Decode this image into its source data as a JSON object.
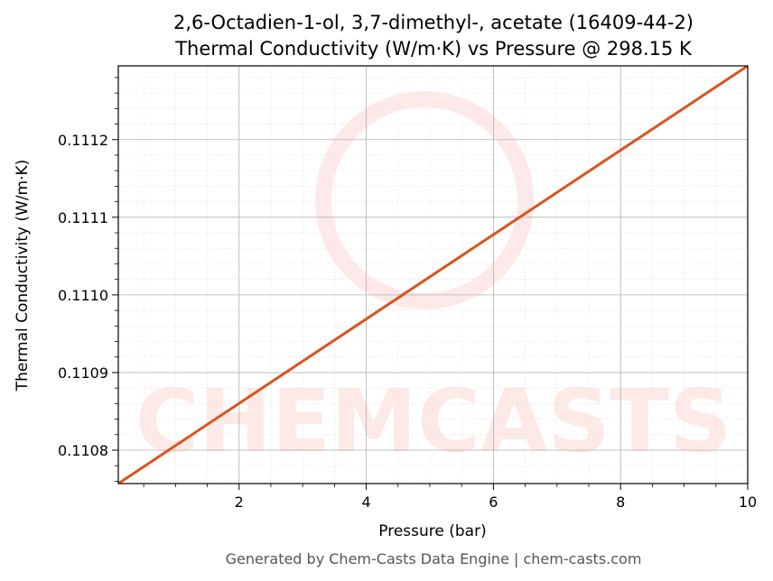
{
  "chart_data": {
    "type": "line",
    "title": "2,6-Octadien-1-ol, 3,7-dimethyl-, acetate (16409-44-2)",
    "subtitle": "Thermal Conductivity (W/m·K) vs Pressure @ 298.15 K",
    "xlabel": "Pressure (bar)",
    "ylabel": "Thermal Conductivity (W/m·K)",
    "footer": "Generated by Chem-Casts Data Engine | chem-casts.com",
    "watermark": "CHEMCASTS",
    "x": [
      0.1,
      10
    ],
    "series": [
      {
        "name": "Thermal Conductivity",
        "color": "#d9541e",
        "values": [
          0.110757,
          0.111295
        ]
      }
    ],
    "xlim": [
      0.1,
      10
    ],
    "ylim": [
      0.110757,
      0.111295
    ],
    "xticks": [
      2,
      4,
      6,
      8,
      10
    ],
    "yticks": [
      0.1108,
      0.1109,
      {
        "value": 0.111,
        "label": "0.1110"
      },
      0.1111,
      0.1112
    ],
    "xminorticks": [
      0.5,
      1,
      1.5,
      2.5,
      3,
      3.5,
      4.5,
      5,
      5.5,
      6.5,
      7,
      7.5,
      8.5,
      9,
      9.5
    ],
    "yminorticks": [
      0.11076,
      0.11078,
      0.11082,
      0.11084,
      0.11086,
      0.11088,
      0.11092,
      0.11094,
      0.11096,
      0.11098,
      0.11102,
      0.11104,
      0.11106,
      0.11108,
      0.11112,
      0.11114,
      0.11116,
      0.11118,
      0.11122,
      0.11124,
      0.11126,
      0.11128
    ],
    "grid": true
  }
}
